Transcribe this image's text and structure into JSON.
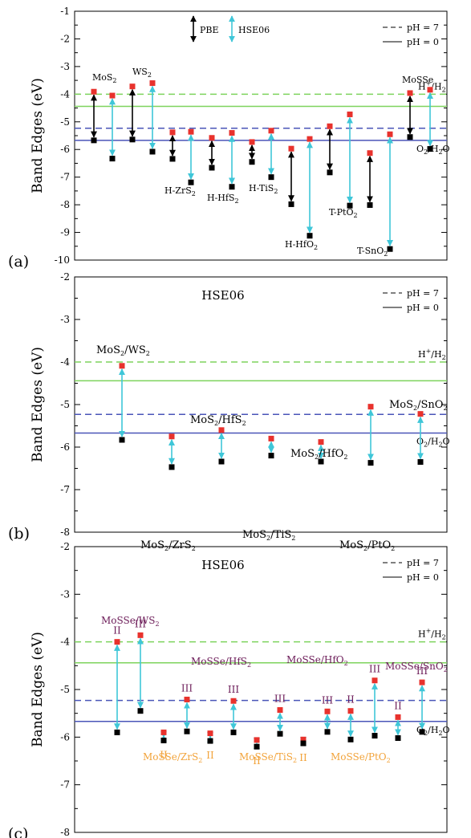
{
  "colors": {
    "green": "#7ed35d",
    "blue": "#4a55b8",
    "cyan": "#3fc6d8",
    "red": "#e8322d",
    "black": "#000000",
    "purple": "#6b1a57",
    "orange": "#f2a33a"
  },
  "chart_data": [
    {
      "panel": "(a)",
      "type": "scatter",
      "ylabel": "Band Edges (eV)",
      "ylim": [
        -10,
        -1
      ],
      "yticks": [
        "-10",
        "-9",
        "-8",
        "-7",
        "-6",
        "-5",
        "-4",
        "-3",
        "-2",
        "-1"
      ],
      "grid": false,
      "legend_placement": "top-right",
      "legend": [
        {
          "label": "pH = 7",
          "style": "dashed"
        },
        {
          "label": "pH = 0",
          "style": "solid"
        }
      ],
      "arrow_legend": [
        {
          "label": "PBE",
          "color": "black"
        },
        {
          "label": "HSE06",
          "color": "cyan"
        }
      ],
      "reference_lines": [
        {
          "label": "H+/H2",
          "pH": 7,
          "y": -4.0,
          "color": "green",
          "style": "dashed"
        },
        {
          "label": "",
          "pH": 0,
          "y": -4.44,
          "color": "green",
          "style": "solid"
        },
        {
          "label": "",
          "pH": 7,
          "y": -5.23,
          "color": "blue",
          "style": "dashed"
        },
        {
          "label": "O2/H2O",
          "pH": 0,
          "y": -5.67,
          "color": "blue",
          "style": "solid"
        }
      ],
      "pairs": [
        {
          "material": "MoS2",
          "method": "PBE",
          "cbm": -3.91,
          "vbm": -5.67
        },
        {
          "material": "MoS2",
          "method": "HSE06",
          "cbm": -4.05,
          "vbm": -6.33
        },
        {
          "material": "WS2",
          "method": "PBE",
          "cbm": -3.72,
          "vbm": -5.64
        },
        {
          "material": "WS2",
          "method": "HSE06",
          "cbm": -3.6,
          "vbm": -6.08
        },
        {
          "material": "H-ZrS2",
          "method": "PBE",
          "cbm": -5.38,
          "vbm": -6.34
        },
        {
          "material": "H-ZrS2",
          "method": "HSE06",
          "cbm": -5.36,
          "vbm": -7.19
        },
        {
          "material": "H-HfS2",
          "method": "PBE",
          "cbm": -5.58,
          "vbm": -6.66
        },
        {
          "material": "H-HfS2",
          "method": "HSE06",
          "cbm": -5.4,
          "vbm": -7.35
        },
        {
          "material": "H-TiS2",
          "method": "PBE",
          "cbm": -5.73,
          "vbm": -6.45
        },
        {
          "material": "H-TiS2",
          "method": "HSE06",
          "cbm": -5.32,
          "vbm": -7.0
        },
        {
          "material": "H-HfO2",
          "method": "PBE",
          "cbm": -5.97,
          "vbm": -7.98
        },
        {
          "material": "H-HfO2",
          "method": "HSE06",
          "cbm": -5.62,
          "vbm": -9.12
        },
        {
          "material": "T-PtO2",
          "method": "PBE",
          "cbm": -5.16,
          "vbm": -6.83
        },
        {
          "material": "T-PtO2",
          "method": "HSE06",
          "cbm": -4.73,
          "vbm": -8.03
        },
        {
          "material": "T-SnO2",
          "method": "PBE",
          "cbm": -6.13,
          "vbm": -8.01
        },
        {
          "material": "T-SnO2",
          "method": "HSE06",
          "cbm": -5.45,
          "vbm": -9.6
        },
        {
          "material": "MoSSe",
          "method": "PBE",
          "cbm": -3.96,
          "vbm": -5.55
        },
        {
          "material": "MoSSe",
          "method": "HSE06",
          "cbm": -3.84,
          "vbm": -5.98
        }
      ],
      "labels": [
        {
          "base": "MoS",
          "sub": "2",
          "sup": ""
        },
        {
          "base": "WS",
          "sub": "2",
          "sup": ""
        },
        {
          "base": "H-ZrS",
          "sub": "2",
          "sup": ""
        },
        {
          "base": "H-HfS",
          "sub": "2",
          "sup": ""
        },
        {
          "base": "H-TiS",
          "sub": "2",
          "sup": ""
        },
        {
          "base": "H-HfO",
          "sub": "2",
          "sup": ""
        },
        {
          "base": "T-PtO",
          "sub": "2",
          "sup": ""
        },
        {
          "base": "T-SnO",
          "sub": "2",
          "sup": ""
        },
        {
          "base": "MoSSe",
          "sub": "",
          "sup": ""
        }
      ],
      "ref_labels": [
        {
          "text": "H+/H2"
        },
        {
          "text": "O2/H2O"
        }
      ]
    },
    {
      "panel": "(b)",
      "type": "scatter",
      "title": "HSE06",
      "ylabel": "Band Edges (eV)",
      "ylim": [
        -8,
        -2
      ],
      "yticks": [
        "-8",
        "-7",
        "-6",
        "-5",
        "-4",
        "-3",
        "-2"
      ],
      "grid": false,
      "legend_placement": "top-right",
      "legend": [
        {
          "label": "pH = 7",
          "style": "dashed"
        },
        {
          "label": "pH = 0",
          "style": "solid"
        }
      ],
      "reference_lines": [
        {
          "label": "H+/H2",
          "pH": 7,
          "y": -4.0,
          "color": "green",
          "style": "dashed"
        },
        {
          "label": "",
          "pH": 0,
          "y": -4.44,
          "color": "green",
          "style": "solid"
        },
        {
          "label": "",
          "pH": 7,
          "y": -5.23,
          "color": "blue",
          "style": "dashed"
        },
        {
          "label": "O2/H2O",
          "pH": 0,
          "y": -5.67,
          "color": "blue",
          "style": "solid"
        }
      ],
      "pairs": [
        {
          "material": "MoS2/WS2",
          "cbm": -4.09,
          "vbm": -5.83
        },
        {
          "material": "MoS2/ZrS2",
          "cbm": -5.75,
          "vbm": -6.47
        },
        {
          "material": "MoS2/HfS2",
          "cbm": -5.6,
          "vbm": -6.34
        },
        {
          "material": "MoS2/TiS2",
          "cbm": -5.8,
          "vbm": -6.2
        },
        {
          "material": "MoS2/HfO2",
          "cbm": -5.88,
          "vbm": -6.34
        },
        {
          "material": "MoS2/PtO2",
          "cbm": -5.05,
          "vbm": -6.37
        },
        {
          "material": "MoS2/SnO2",
          "cbm": -5.22,
          "vbm": -6.35
        }
      ],
      "labels": [
        {
          "base": "MoS",
          "sub": "2",
          "rest": "/WS",
          "sub2": "2"
        },
        {
          "base": "MoS",
          "sub": "2",
          "rest": "/ZrS",
          "sub2": "2"
        },
        {
          "base": "MoS",
          "sub": "2",
          "rest": "/HfS",
          "sub2": "2"
        },
        {
          "base": "MoS",
          "sub": "2",
          "rest": "/TiS",
          "sub2": "2"
        },
        {
          "base": "MoS",
          "sub": "2",
          "rest": "/HfO",
          "sub2": "2"
        },
        {
          "base": "MoS",
          "sub": "2",
          "rest": "/PtO",
          "sub2": "2"
        },
        {
          "base": "MoS",
          "sub": "2",
          "rest": "/SnO",
          "sub2": "2"
        }
      ]
    },
    {
      "panel": "(c)",
      "type": "scatter",
      "title": "HSE06",
      "ylabel": "Band Edges (eV)",
      "ylim": [
        -8,
        -2
      ],
      "yticks": [
        "-8",
        "-7",
        "-6",
        "-5",
        "-4",
        "-3",
        "-2"
      ],
      "grid": false,
      "legend_placement": "top-right",
      "legend": [
        {
          "label": "pH = 7",
          "style": "dashed"
        },
        {
          "label": "pH = 0",
          "style": "solid"
        }
      ],
      "reference_lines": [
        {
          "label": "H+/H2",
          "pH": 7,
          "y": -4.0,
          "color": "green",
          "style": "dashed"
        },
        {
          "label": "",
          "pH": 0,
          "y": -4.44,
          "color": "green",
          "style": "solid"
        },
        {
          "label": "",
          "pH": 7,
          "y": -5.23,
          "color": "blue",
          "style": "dashed"
        },
        {
          "label": "O2/H2O",
          "pH": 0,
          "y": -5.67,
          "color": "blue",
          "style": "solid"
        }
      ],
      "pairs": [
        {
          "material": "MoSSe/WS2",
          "stacking": "II",
          "cbm": -4.0,
          "vbm": -5.9
        },
        {
          "material": "MoSSe/WS2",
          "stacking": "III",
          "cbm": -3.86,
          "vbm": -5.45
        },
        {
          "material": "MoSSe/ZrS2",
          "stacking": "II",
          "cbm": -5.9,
          "vbm": -6.07
        },
        {
          "material": "MoSSe/ZrS2",
          "stacking": "III",
          "cbm": -5.21,
          "vbm": -5.88
        },
        {
          "material": "MoSSe/HfS2",
          "stacking": "II",
          "cbm": -5.92,
          "vbm": -6.08
        },
        {
          "material": "MoSSe/HfS2",
          "stacking": "III",
          "cbm": -5.24,
          "vbm": -5.9
        },
        {
          "material": "MoSSe/TiS2",
          "stacking": "II",
          "cbm": -6.06,
          "vbm": -6.2
        },
        {
          "material": "MoSSe/TiS2",
          "stacking": "III",
          "cbm": -5.43,
          "vbm": -5.93
        },
        {
          "material": "MoSSe/HfO2",
          "stacking": "II",
          "cbm": -6.05,
          "vbm": -6.13
        },
        {
          "material": "MoSSe/HfO2",
          "stacking": "III",
          "cbm": -5.46,
          "vbm": -5.89
        },
        {
          "material": "MoSSe/PtO2",
          "stacking": "II",
          "cbm": -5.45,
          "vbm": -6.05
        },
        {
          "material": "MoSSe/PtO2",
          "stacking": "III",
          "cbm": -4.81,
          "vbm": -5.97
        },
        {
          "material": "MoSSe/SnO2",
          "stacking": "II",
          "cbm": -5.58,
          "vbm": -6.02
        },
        {
          "material": "MoSSe/SnO2",
          "stacking": "III",
          "cbm": -4.85,
          "vbm": -5.89
        }
      ],
      "labels": [
        {
          "base": "MoSSe/WS",
          "sub": "2",
          "color": "purple"
        },
        {
          "base": "MoSSe/HfS",
          "sub": "2",
          "color": "purple"
        },
        {
          "base": "MoSSe/HfO",
          "sub": "2",
          "color": "purple"
        },
        {
          "base": "MoSSe/SnO",
          "sub": "2",
          "color": "purple"
        },
        {
          "base": "MoSSe/ZrS",
          "sub": "2",
          "color": "orange"
        },
        {
          "base": "MoSSe/TiS",
          "sub": "2",
          "color": "orange"
        },
        {
          "base": "MoSSe/PtO",
          "sub": "2",
          "color": "orange"
        }
      ],
      "stacking_labels": [
        "II",
        "III"
      ]
    }
  ]
}
